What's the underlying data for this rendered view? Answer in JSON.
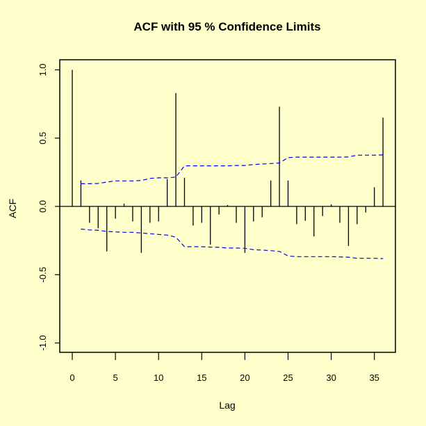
{
  "colors": {
    "background": "#FFFFCC",
    "bars": "#000000",
    "confidence_limits": "#0000EE",
    "frame": "#000000"
  },
  "chart_data": {
    "type": "bar",
    "title": "ACF with 95 % Confidence Limits",
    "xlabel": "Lag",
    "ylabel": "ACF",
    "xlim": [
      -1.5,
      37.5
    ],
    "ylim": [
      -1.07,
      1.07
    ],
    "xticks": [
      0,
      5,
      10,
      15,
      20,
      25,
      30,
      35
    ],
    "xtick_labels": [
      "0",
      "5",
      "10",
      "15",
      "20",
      "25",
      "30",
      "35"
    ],
    "yticks": [
      -1.0,
      -0.5,
      0.0,
      0.5,
      1.0
    ],
    "ytick_labels": [
      "-1.0",
      "-0.5",
      "0.0",
      "0.5",
      "1.0"
    ],
    "grid": false,
    "legend": null,
    "lags": [
      0,
      1,
      2,
      3,
      4,
      5,
      6,
      7,
      8,
      9,
      10,
      11,
      12,
      13,
      14,
      15,
      16,
      17,
      18,
      19,
      20,
      21,
      22,
      23,
      24,
      25,
      26,
      27,
      28,
      29,
      30,
      31,
      32,
      33,
      34,
      35,
      36
    ],
    "acf": [
      1.0,
      0.19,
      -0.12,
      -0.16,
      -0.33,
      -0.09,
      0.02,
      -0.11,
      -0.34,
      -0.12,
      -0.11,
      0.2,
      0.83,
      0.21,
      -0.14,
      -0.12,
      -0.28,
      -0.06,
      0.01,
      -0.12,
      -0.34,
      -0.11,
      -0.08,
      0.19,
      0.73,
      0.19,
      -0.13,
      -0.105,
      -0.22,
      -0.07,
      0.015,
      -0.12,
      -0.29,
      -0.13,
      -0.045,
      0.14,
      0.65
    ],
    "series": [
      {
        "name": "Upper 95% confidence limit",
        "style": "dashed",
        "x": [
          1,
          2,
          3,
          4,
          5,
          6,
          7,
          8,
          9,
          10,
          11,
          12,
          13,
          14,
          15,
          16,
          17,
          18,
          19,
          20,
          21,
          22,
          23,
          24,
          25,
          26,
          27,
          28,
          29,
          30,
          31,
          32,
          33,
          34,
          35,
          36
        ],
        "values": [
          0.166,
          0.166,
          0.168,
          0.178,
          0.187,
          0.187,
          0.187,
          0.19,
          0.205,
          0.209,
          0.209,
          0.215,
          0.297,
          0.297,
          0.297,
          0.297,
          0.297,
          0.297,
          0.3,
          0.3,
          0.307,
          0.31,
          0.314,
          0.318,
          0.357,
          0.361,
          0.361,
          0.361,
          0.361,
          0.361,
          0.361,
          0.362,
          0.375,
          0.375,
          0.375,
          0.377
        ]
      },
      {
        "name": "Lower 95% confidence limit",
        "style": "dashed",
        "x": [
          1,
          2,
          3,
          4,
          5,
          6,
          7,
          8,
          9,
          10,
          11,
          12,
          13,
          14,
          15,
          16,
          17,
          18,
          19,
          20,
          21,
          22,
          23,
          24,
          25,
          26,
          27,
          28,
          29,
          30,
          31,
          32,
          33,
          34,
          35,
          36
        ],
        "values": [
          -0.166,
          -0.172,
          -0.175,
          -0.183,
          -0.187,
          -0.19,
          -0.19,
          -0.195,
          -0.2,
          -0.205,
          -0.21,
          -0.225,
          -0.295,
          -0.295,
          -0.295,
          -0.298,
          -0.3,
          -0.305,
          -0.305,
          -0.307,
          -0.317,
          -0.32,
          -0.324,
          -0.33,
          -0.363,
          -0.368,
          -0.368,
          -0.368,
          -0.368,
          -0.368,
          -0.37,
          -0.372,
          -0.38,
          -0.38,
          -0.38,
          -0.382
        ]
      }
    ]
  }
}
